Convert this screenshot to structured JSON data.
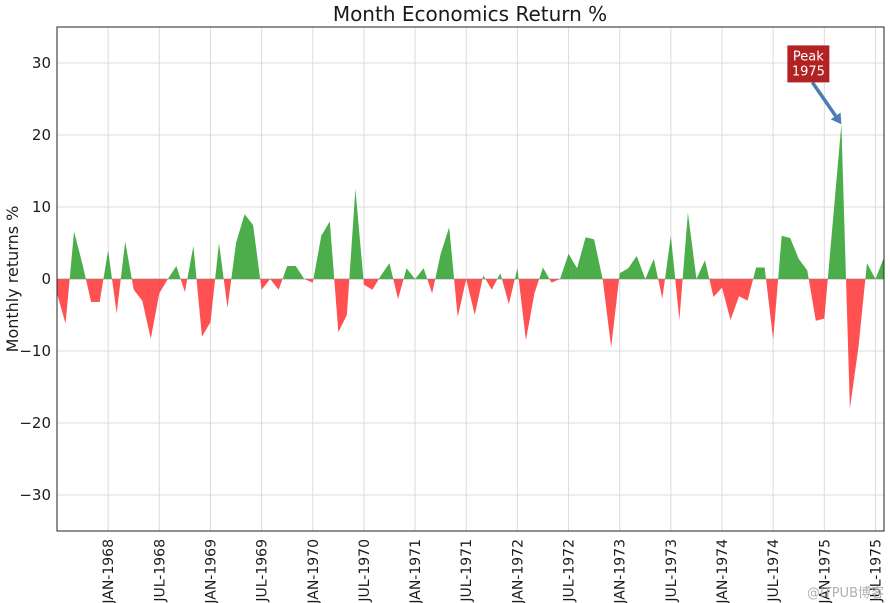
{
  "chart_data": {
    "type": "area",
    "title": "Month Economics Return %",
    "xlabel": "",
    "ylabel": "Monthly returns %",
    "ylim": [
      -35,
      35
    ],
    "yticks": [
      -30,
      -20,
      -10,
      0,
      10,
      20,
      30
    ],
    "grid": true,
    "x_start": "1967-07",
    "x_end": "1975-12",
    "xtick_labels": [
      "JAN-1968",
      "JUL-1968",
      "JAN-1969",
      "JUL-1969",
      "JAN-1970",
      "JUL-1970",
      "JAN-1971",
      "JUL-1971",
      "JAN-1972",
      "JUL-1972",
      "JAN-1973",
      "JUL-1973",
      "JAN-1974",
      "JUL-1974",
      "JAN-1975",
      "JUL-1975"
    ],
    "positive_color": "#2ca02c",
    "negative_color": "#ff3333",
    "series": [
      {
        "values": [
          -2,
          -6.2,
          6.6,
          2,
          -3.2,
          -3.2,
          4,
          -4.8,
          5.2,
          -1.5,
          -3,
          -8.3,
          -2,
          0,
          1.8,
          -1.8,
          4.6,
          -8,
          -6,
          5,
          -4,
          5,
          9,
          7.5,
          -1.5,
          0,
          -1.5,
          1.8,
          1.8,
          0,
          -0.5,
          6,
          8,
          -7.4,
          -5,
          12.5,
          -0.8,
          -1.5,
          0.5,
          2.2,
          -2.8,
          1.5,
          0,
          1.5,
          -2,
          3.5,
          7.2,
          -5.3,
          0,
          -5,
          0.5,
          -1.5,
          0.8,
          -3.5,
          1.5,
          -8.5,
          -2,
          1.6,
          -0.5,
          0,
          3.5,
          1.5,
          5.8,
          5.5,
          0,
          -9.5,
          0.8,
          1.5,
          3.2,
          0,
          2.8,
          -2.7,
          6,
          -5.7,
          9.2,
          0,
          2.6,
          -2.5,
          -1.2,
          -5.7,
          -2.4,
          -3,
          1.6,
          1.6,
          -8.4,
          6,
          5.7,
          2.8,
          1.2,
          -5.8,
          -5.5,
          8,
          21.5,
          -18,
          -9.5,
          2.2,
          0,
          3
        ]
      }
    ],
    "annotation": {
      "text_line1": "Peak",
      "text_line2": "1975",
      "point_index": 92,
      "point_value": 21.5,
      "box_color": "#b22222",
      "arrow_color": "#4a7db3"
    }
  },
  "watermark": "@ITPUB博客"
}
